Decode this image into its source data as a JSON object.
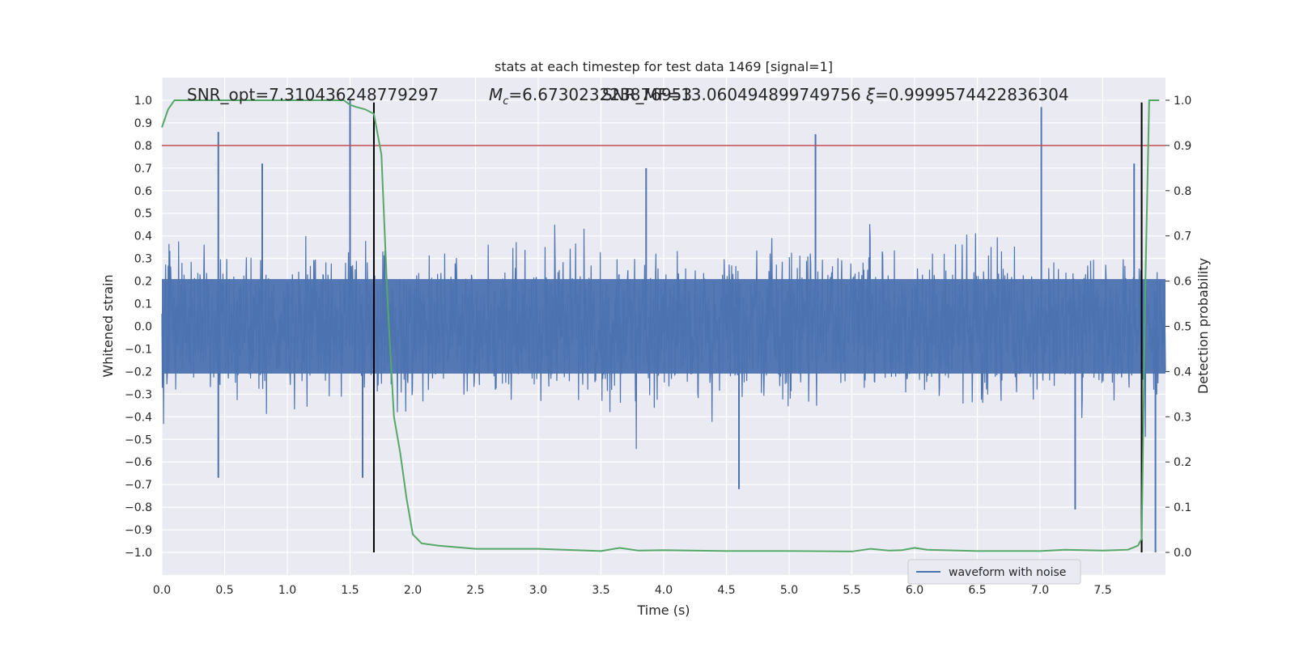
{
  "chart_data": {
    "type": "line",
    "title": "stats at each timestep for test data 1469 [signal=1]",
    "xlabel": "Time (s)",
    "ylabel": "Whitened strain",
    "y2label": "Detection probability",
    "xlim": [
      0.0,
      8.0
    ],
    "ylim": [
      -1.1,
      1.1
    ],
    "y2lim": [
      -0.05,
      1.05
    ],
    "xticks": [
      "0.0",
      "0.5",
      "1.0",
      "1.5",
      "2.0",
      "2.5",
      "3.0",
      "3.5",
      "4.0",
      "4.5",
      "5.0",
      "5.5",
      "6.0",
      "6.5",
      "7.0",
      "7.5"
    ],
    "yticks": [
      "1.0",
      "0.9",
      "0.8",
      "0.7",
      "0.6",
      "0.5",
      "0.4",
      "0.3",
      "0.2",
      "0.1",
      "0.0",
      "−0.1",
      "−0.2",
      "−0.3",
      "−0.4",
      "−0.5",
      "−0.6",
      "−0.7",
      "−0.8",
      "−0.9",
      "−1.0"
    ],
    "y2ticks": [
      "1.0",
      "0.9",
      "0.8",
      "0.7",
      "0.6",
      "0.5",
      "0.4",
      "0.3",
      "0.2",
      "0.1",
      "0.0"
    ],
    "grid": true,
    "legend_position": "lower-right",
    "annotations": [
      "SNR_opt=7.310436248779297",
      "=6.673023223876953",
      "SNR_MF=13.060494899749756",
      "=0.9999574422836304"
    ],
    "annotation_symbols": [
      "M",
      "c",
      "ξ"
    ],
    "threshold_y2": 0.9,
    "vertical_lines_x": [
      1.69,
      7.81
    ],
    "series": [
      {
        "name": "waveform with noise",
        "axis": "left",
        "color": "#4c72b0",
        "kind": "noise",
        "core_amplitude": 0.38,
        "peaks": [
          {
            "x": 0.45,
            "y": 0.86
          },
          {
            "x": 0.45,
            "y": -0.67
          },
          {
            "x": 1.5,
            "y": 1.0
          },
          {
            "x": 1.6,
            "y": -0.67
          },
          {
            "x": 5.21,
            "y": 0.85
          },
          {
            "x": 4.6,
            "y": -0.72
          },
          {
            "x": 7.01,
            "y": 0.97
          },
          {
            "x": 7.28,
            "y": -0.81
          },
          {
            "x": 7.92,
            "y": -1.0
          },
          {
            "x": 7.75,
            "y": 0.72
          },
          {
            "x": 3.86,
            "y": 0.7
          },
          {
            "x": 0.8,
            "y": 0.72
          }
        ]
      },
      {
        "name": "detection probability",
        "axis": "right",
        "color": "#55a868",
        "x": [
          0.0,
          0.05,
          0.1,
          0.5,
          1.0,
          1.45,
          1.5,
          1.55,
          1.62,
          1.69,
          1.75,
          1.8,
          1.85,
          1.9,
          1.95,
          2.0,
          2.07,
          2.2,
          2.5,
          3.0,
          3.5,
          3.65,
          3.8,
          4.0,
          4.5,
          5.0,
          5.5,
          5.65,
          5.8,
          5.9,
          6.0,
          6.1,
          6.5,
          7.0,
          7.2,
          7.5,
          7.7,
          7.78,
          7.81,
          7.84,
          7.87,
          7.95
        ],
        "values": [
          0.94,
          0.98,
          1.0,
          1.0,
          1.0,
          1.0,
          0.99,
          0.985,
          0.98,
          0.97,
          0.88,
          0.55,
          0.3,
          0.22,
          0.12,
          0.04,
          0.02,
          0.015,
          0.008,
          0.008,
          0.003,
          0.01,
          0.004,
          0.005,
          0.003,
          0.003,
          0.002,
          0.008,
          0.004,
          0.005,
          0.01,
          0.006,
          0.003,
          0.003,
          0.006,
          0.004,
          0.006,
          0.015,
          0.03,
          0.6,
          1.0,
          1.0
        ]
      }
    ]
  }
}
